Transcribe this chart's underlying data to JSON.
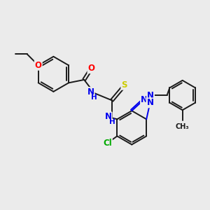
{
  "bg_color": "#ebebeb",
  "bond_color": "#1a1a1a",
  "bond_width": 1.4,
  "atom_colors": {
    "O": "#ff0000",
    "N": "#0000ee",
    "S": "#cccc00",
    "Cl": "#00aa00",
    "C": "#1a1a1a",
    "H": "#666666"
  },
  "font_size": 8.5,
  "title": ""
}
